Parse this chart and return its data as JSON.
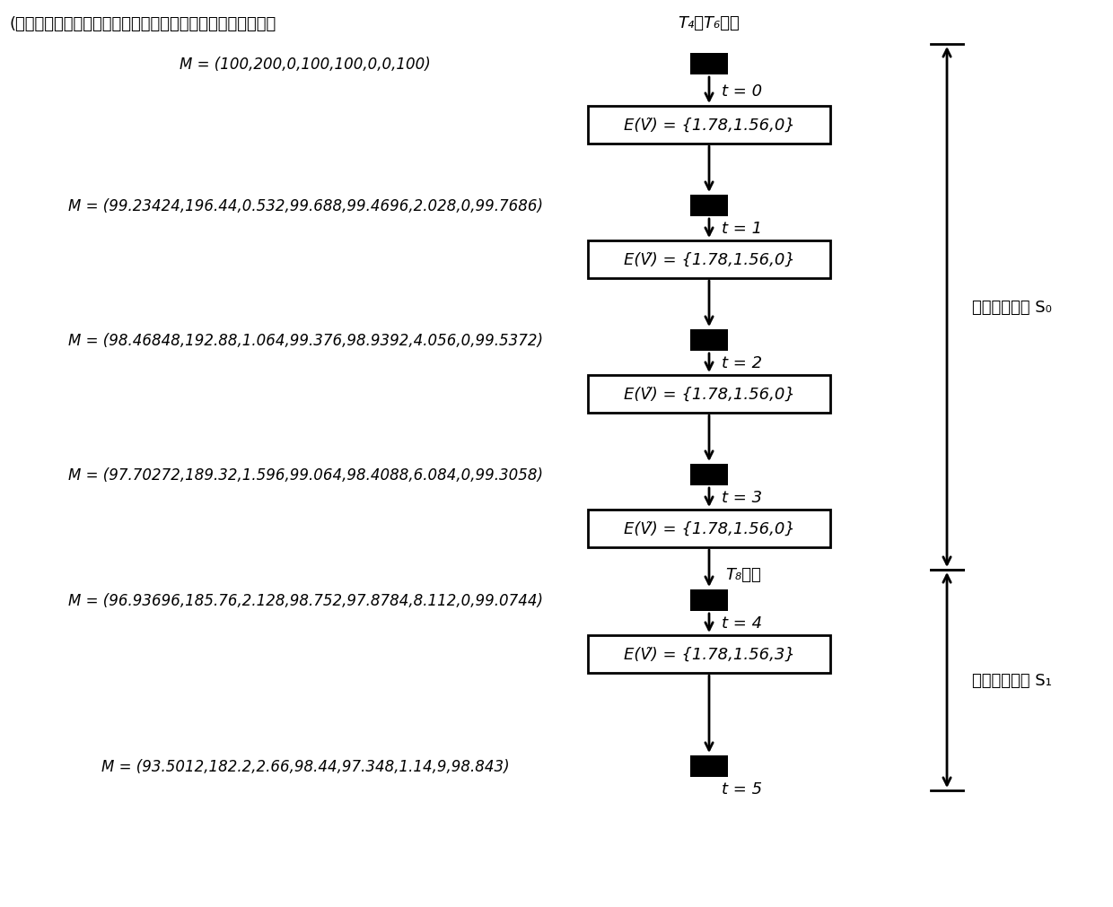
{
  "header_text": "(蜂汽，原料液，浓液碘，白糖，燔盐，燔融浓碘，片碘，电）",
  "trigger_text_pre": "T",
  "trigger_text": "T₄、T₆濃发",
  "M_labels": [
    "M = (100,200,0,100,100,0,0,100)",
    "M = (99.23424,196.44,0.532,99.688,99.4696,2.028,0,99.7686)",
    "M = (98.46848,192.88,1.064,99.376,98.9392,4.056,0,99.5372)",
    "M = (97.70272,189.32,1.596,99.064,98.4088,6.084,0,99.3058)",
    "M = (96.93696,185.76,2.128,98.752,97.8784,8.112,0,99.0744)",
    "M = (93.5012,182.2,2.66,98.44,97.348,1.14,9,98.843)"
  ],
  "EV_labels": [
    "E(Ṽ) = {1.78,1.56,0}",
    "E(Ṽ) = {1.78,1.56,0}",
    "E(Ṽ) = {1.78,1.56,0}",
    "E(Ṽ) = {1.78,1.56,0}",
    "E(Ṽ) = {1.78,1.56,3}"
  ],
  "t_labels": [
    "t = 0",
    "t = 1",
    "t = 2",
    "t = 3",
    "t = 4",
    "t = 5"
  ],
  "T8_trigger_text": "T₈濃发",
  "S0_label": "稳态运行区间 S₀",
  "S1_label": "稳态运行区间 S₁",
  "bg_color": "#ffffff"
}
